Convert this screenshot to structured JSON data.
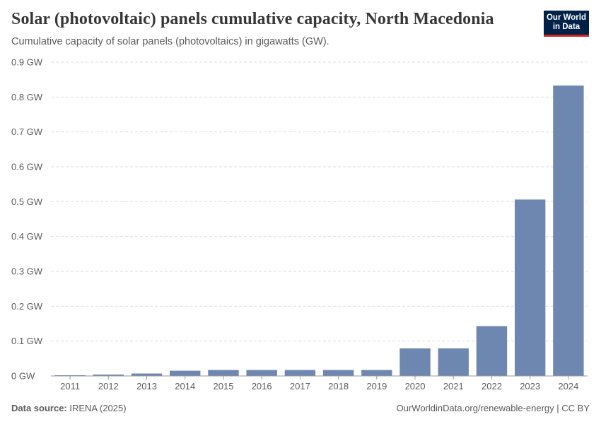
{
  "header": {
    "title": "Solar (photovoltaic) panels cumulative capacity, North Macedonia",
    "subtitle": "Cumulative capacity of solar panels (photovoltaics) in gigawatts (GW).",
    "logo_line1": "Our World",
    "logo_line2": "in Data"
  },
  "footer": {
    "source_label": "Data source:",
    "source_value": "IRENA (2025)",
    "link": "OurWorldinData.org/renewable-energy | CC BY"
  },
  "colors": {
    "bar": "#6d87b1",
    "grid": "#dddddd",
    "axis": "#999999"
  },
  "chart_data": {
    "type": "bar",
    "title": "Solar (photovoltaic) panels cumulative capacity, North Macedonia",
    "xlabel": "",
    "ylabel": "GW",
    "ylim": [
      0,
      0.9
    ],
    "yticks": [
      0,
      0.1,
      0.2,
      0.3,
      0.4,
      0.5,
      0.6,
      0.7,
      0.8,
      0.9
    ],
    "ytick_labels": [
      "0 GW",
      "0.1 GW",
      "0.2 GW",
      "0.3 GW",
      "0.4 GW",
      "0.5 GW",
      "0.6 GW",
      "0.7 GW",
      "0.8 GW",
      "0.9 GW"
    ],
    "categories": [
      "2011",
      "2012",
      "2013",
      "2014",
      "2015",
      "2016",
      "2017",
      "2018",
      "2019",
      "2020",
      "2021",
      "2022",
      "2023",
      "2024"
    ],
    "values": [
      0.002,
      0.004,
      0.007,
      0.015,
      0.017,
      0.017,
      0.017,
      0.017,
      0.017,
      0.079,
      0.079,
      0.143,
      0.506,
      0.833
    ],
    "grid": true
  }
}
